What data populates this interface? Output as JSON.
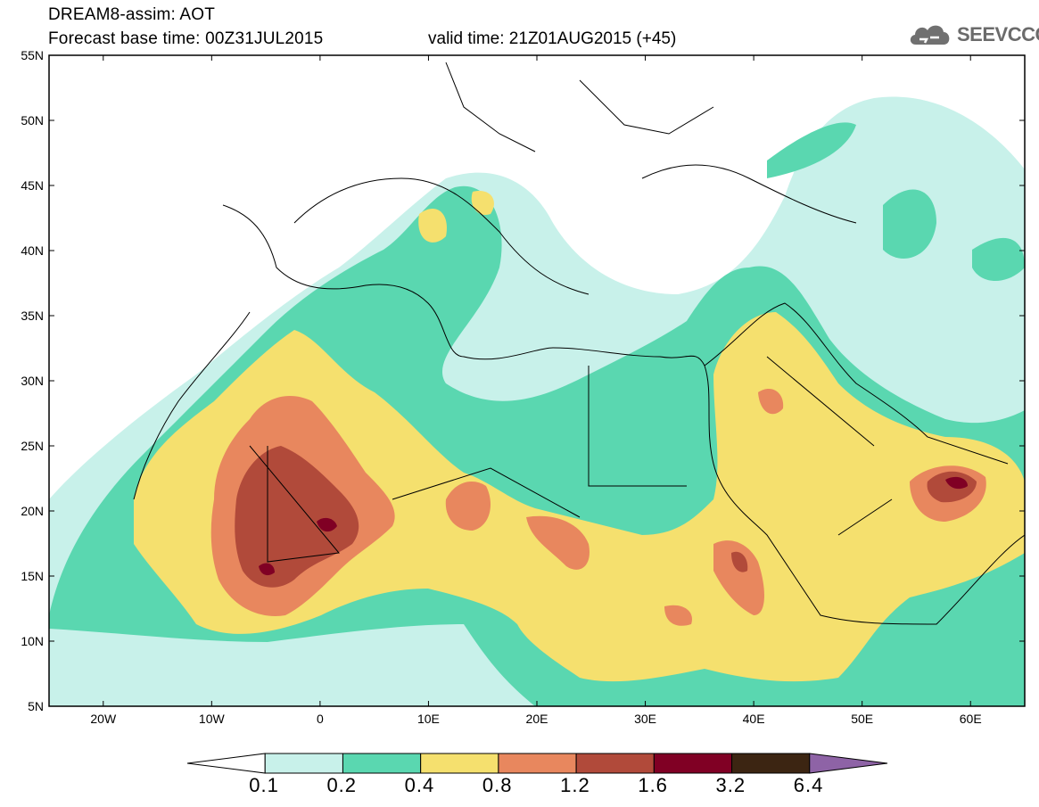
{
  "header": {
    "title": "DREAM8-assim: AOT",
    "forecast_base": "Forecast base time: 00Z31JUL2015",
    "valid_time": "valid time: 21Z01AUG2015 (+45)",
    "logo_text": "SEEVCCC"
  },
  "map": {
    "lon_range": [
      -25,
      65
    ],
    "lat_range": [
      5,
      55
    ],
    "lon_ticks": [
      "20W",
      "10W",
      "0",
      "10E",
      "20E",
      "30E",
      "40E",
      "50E",
      "60E"
    ],
    "lon_tick_values": [
      -20,
      -10,
      0,
      10,
      20,
      30,
      40,
      50,
      60
    ],
    "lat_ticks": [
      "5N",
      "10N",
      "15N",
      "20N",
      "25N",
      "30N",
      "35N",
      "40N",
      "45N",
      "50N",
      "55N"
    ],
    "lat_tick_values": [
      5,
      10,
      15,
      20,
      25,
      30,
      35,
      40,
      45,
      50,
      55
    ],
    "field": "Aerosol optical thickness (AOT)"
  },
  "colorbar": {
    "labels": [
      "0.1",
      "0.2",
      "0.4",
      "0.8",
      "1.2",
      "1.6",
      "3.2",
      "6.4"
    ],
    "colors": [
      "#ffffff",
      "#c8f1ea",
      "#5ad7b0",
      "#f5e06e",
      "#e8875e",
      "#b14a3a",
      "#800024",
      "#3c2512",
      "#8e63a6"
    ]
  }
}
